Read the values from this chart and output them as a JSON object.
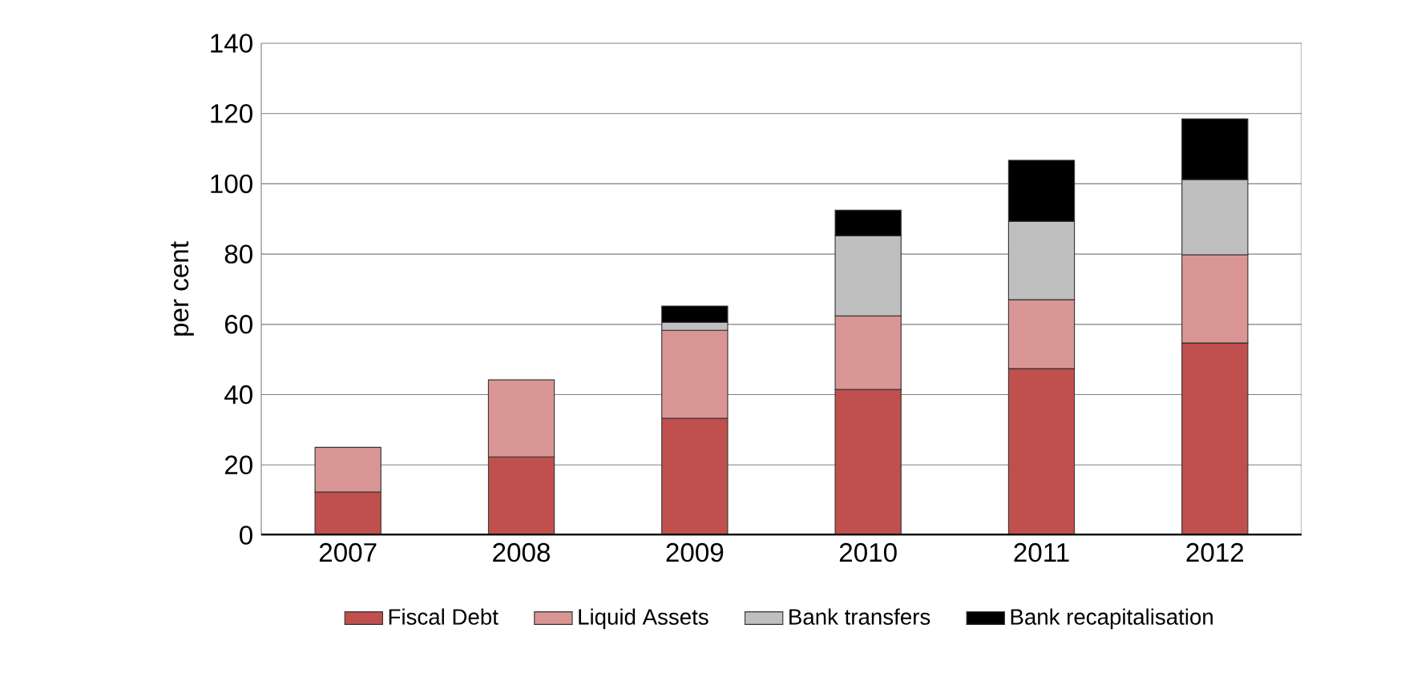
{
  "chart_data": {
    "type": "bar",
    "stacked": true,
    "ylabel": "per cent",
    "categories": [
      "2007",
      "2008",
      "2009",
      "2010",
      "2011",
      "2012"
    ],
    "series": [
      {
        "name": "Fiscal Debt",
        "color": "#c0504d",
        "values": [
          12.3,
          22.3,
          33.3,
          41.5,
          47.4,
          54.7
        ]
      },
      {
        "name": "Liquid Assets",
        "color": "#d99694",
        "values": [
          12.7,
          21.9,
          25.0,
          20.9,
          19.6,
          25.1
        ]
      },
      {
        "name": "Bank transfers",
        "color": "#bfbfbf",
        "values": [
          null,
          null,
          2.3,
          22.8,
          22.3,
          21.4
        ]
      },
      {
        "name": "Bank recapitalisation",
        "color": "#000000",
        "values": [
          null,
          null,
          4.6,
          7.3,
          17.4,
          17.3
        ]
      }
    ],
    "ylim": [
      0,
      140
    ],
    "yticks": [
      0,
      20,
      40,
      60,
      80,
      100,
      120,
      140
    ],
    "grid": "y",
    "legend": "bottom"
  }
}
